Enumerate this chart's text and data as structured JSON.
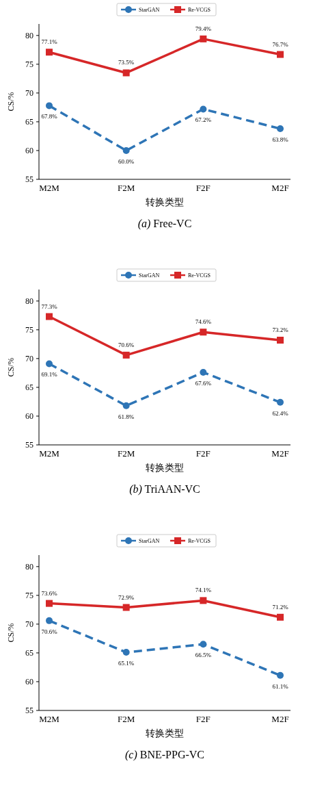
{
  "chart_data": [
    {
      "type": "line",
      "categories": [
        "M2M",
        "F2M",
        "F2F",
        "M2F"
      ],
      "xlabel": "转换类型",
      "ylabel": "CS/%",
      "ylim": [
        55,
        82
      ],
      "yticks": [
        55,
        60,
        65,
        70,
        75,
        80
      ],
      "legend": "top",
      "annotations": [
        "*(a)* Free-VC"
      ],
      "series": [
        {
          "name": "StarGAN",
          "color": "#2e75b6",
          "values": [
            67.8,
            60.0,
            67.2,
            63.8
          ],
          "value_labels": [
            "67.8%",
            "60.0%",
            "67.2%",
            "63.8%"
          ],
          "marker": "circle",
          "line_style": "dashed"
        },
        {
          "name": "Re-VCGS",
          "color": "#d62728",
          "values": [
            77.1,
            73.5,
            79.4,
            76.7
          ],
          "value_labels": [
            "77.1%",
            "73.5%",
            "79.4%",
            "76.7%"
          ],
          "marker": "square",
          "line_style": "solid"
        }
      ]
    },
    {
      "type": "line",
      "categories": [
        "M2M",
        "F2M",
        "F2F",
        "M2F"
      ],
      "xlabel": "转换类型",
      "ylabel": "CS/%",
      "ylim": [
        55,
        82
      ],
      "yticks": [
        55,
        60,
        65,
        70,
        75,
        80
      ],
      "legend": "top",
      "annotations": [
        "*(b)* TriAAN-VC"
      ],
      "series": [
        {
          "name": "StarGAN",
          "color": "#2e75b6",
          "values": [
            69.1,
            61.8,
            67.6,
            62.4
          ],
          "value_labels": [
            "69.1%",
            "61.8%",
            "67.6%",
            "62.4%"
          ],
          "marker": "circle",
          "line_style": "dashed"
        },
        {
          "name": "Re-VCGS",
          "color": "#d62728",
          "values": [
            77.3,
            70.6,
            74.6,
            73.2
          ],
          "value_labels": [
            "77.3%",
            "70.6%",
            "74.6%",
            "73.2%"
          ],
          "marker": "square",
          "line_style": "solid"
        }
      ]
    },
    {
      "type": "line",
      "categories": [
        "M2M",
        "F2M",
        "F2F",
        "M2F"
      ],
      "xlabel": "转换类型",
      "ylabel": "CS/%",
      "ylim": [
        55,
        82
      ],
      "yticks": [
        55,
        60,
        65,
        70,
        75,
        80
      ],
      "legend": "top",
      "annotations": [
        "*(c)* BNE-PPG-VC"
      ],
      "series": [
        {
          "name": "StarGAN",
          "color": "#2e75b6",
          "values": [
            70.6,
            65.1,
            66.5,
            61.1
          ],
          "value_labels": [
            "70.6%",
            "65.1%",
            "66.5%",
            "61.1%"
          ],
          "marker": "circle",
          "line_style": "dashed"
        },
        {
          "name": "Re-VCGS",
          "color": "#d62728",
          "values": [
            73.6,
            72.9,
            74.1,
            71.2
          ],
          "value_labels": [
            "73.6%",
            "72.9%",
            "74.1%",
            "71.2%"
          ],
          "marker": "square",
          "line_style": "solid"
        }
      ]
    }
  ]
}
